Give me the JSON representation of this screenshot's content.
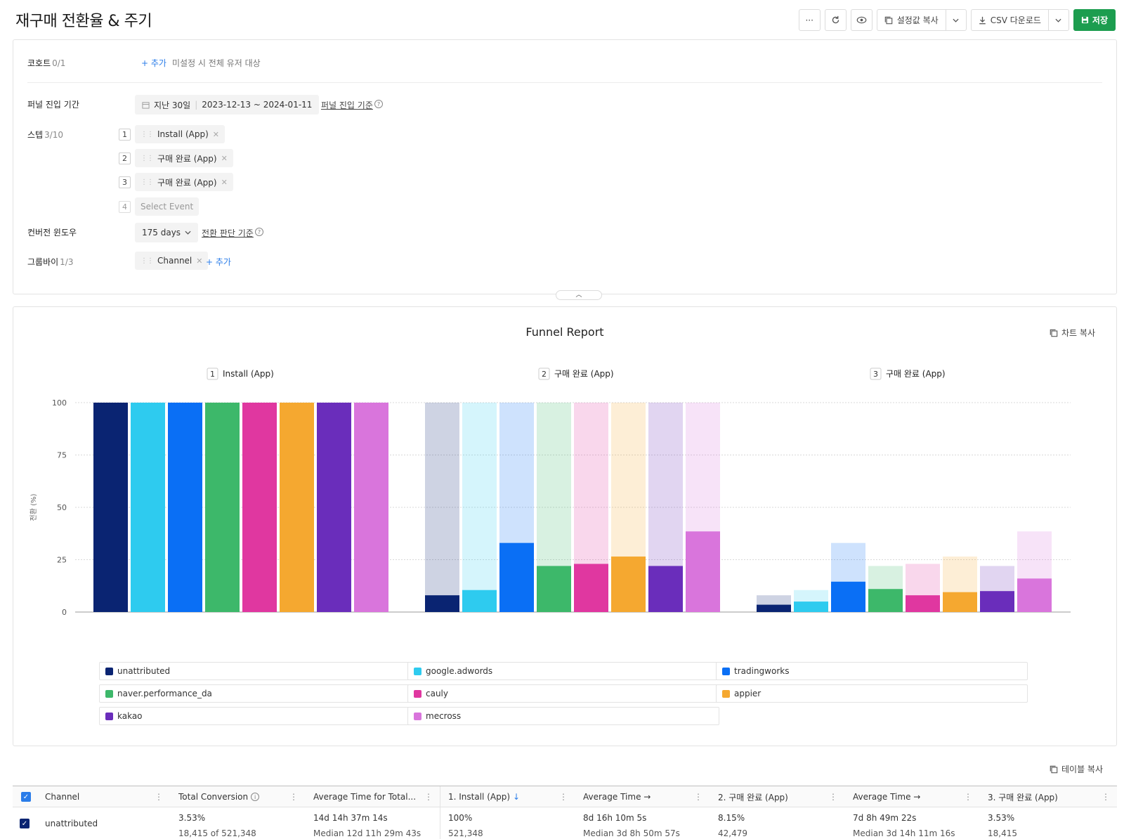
{
  "header": {
    "title": "재구매 전환율 & 주기",
    "more_icon": "···",
    "copy_settings_label": "설정값 복사",
    "csv_label": "CSV 다운로드",
    "save_label": "저장"
  },
  "settings": {
    "cohort": {
      "label": "코호트",
      "count": "0/1",
      "add": "+ 추가",
      "hint": "미설정 시 전체 유저 대상"
    },
    "period": {
      "label": "퍼널 진입 기간",
      "preset": "지난 30일",
      "range": "2023-12-13 ~ 2024-01-11",
      "link": "퍼널 진입 기준"
    },
    "steps": {
      "label": "스텝",
      "count": "3/10",
      "items": [
        {
          "num": "1",
          "name": "Install (App)"
        },
        {
          "num": "2",
          "name": "구매 완료 (App)"
        },
        {
          "num": "3",
          "name": "구매 완료 (App)"
        },
        {
          "num": "4",
          "name": "Select Event"
        }
      ]
    },
    "window": {
      "label": "컨버전 윈도우",
      "value": "175 days",
      "link": "전환 판단 기준"
    },
    "groupby": {
      "label": "그룹바이",
      "count": "1/3",
      "chip": "Channel",
      "add": "+ 추가"
    }
  },
  "chart": {
    "title": "Funnel Report",
    "copy_label": "차트 복사",
    "ylabel": "전환 (%)"
  },
  "chart_data": {
    "type": "bar",
    "title": "Funnel Report",
    "ylabel": "전환 (%)",
    "ylim": [
      0,
      100
    ],
    "yticks": [
      0,
      25,
      50,
      75,
      100
    ],
    "grid": true,
    "legend_position": "bottom",
    "categories": [
      "1|Install (App)",
      "2|구매 완료 (App)",
      "3|구매 완료 (App)"
    ],
    "step_labels": [
      {
        "num": "1",
        "name": "Install (App)"
      },
      {
        "num": "2",
        "name": "구매 완료 (App)"
      },
      {
        "num": "3",
        "name": "구매 완료 (App)"
      }
    ],
    "series": [
      {
        "name": "unattributed",
        "color": "#0a2472",
        "values": [
          100,
          8,
          3.5
        ],
        "prev": [
          null,
          100,
          8
        ]
      },
      {
        "name": "google.adwords",
        "color": "#2ecbef",
        "values": [
          100,
          10.5,
          5
        ],
        "prev": [
          null,
          100,
          10.5
        ]
      },
      {
        "name": "tradingworks",
        "color": "#0a6ff5",
        "values": [
          100,
          33,
          14.5
        ],
        "prev": [
          null,
          100,
          33
        ]
      },
      {
        "name": "naver.performance_da",
        "color": "#3db86a",
        "values": [
          100,
          22,
          11
        ],
        "prev": [
          null,
          100,
          22
        ]
      },
      {
        "name": "cauly",
        "color": "#e037a0",
        "values": [
          100,
          23,
          8
        ],
        "prev": [
          null,
          100,
          23
        ]
      },
      {
        "name": "appier",
        "color": "#f5a830",
        "values": [
          100,
          26.5,
          9.5
        ],
        "prev": [
          null,
          100,
          26.5
        ]
      },
      {
        "name": "kakao",
        "color": "#6a2dbb",
        "values": [
          100,
          22,
          10
        ],
        "prev": [
          null,
          100,
          22
        ]
      },
      {
        "name": "mecross",
        "color": "#d975dc",
        "values": [
          100,
          38.5,
          16
        ],
        "prev": [
          null,
          100,
          38.5
        ]
      }
    ]
  },
  "table": {
    "copy_label": "테이블 복사",
    "columns": [
      "Channel",
      "Total Conversion",
      "Average Time for Total...",
      "1. Install (App)",
      "Average Time →",
      "2. 구매 완료 (App)",
      "Average Time →",
      "3. 구매 완료 (App)"
    ],
    "rows": [
      {
        "channel": "unattributed",
        "total_pct": "3.53%",
        "total_count": "18,415 of 521,348",
        "avg_total": "14d 14h 37m 14s",
        "avg_total_median": "Median 12d 11h 29m 43s",
        "s1_pct": "100%",
        "s1_count": "521,348",
        "avg1": "8d 16h 10m 5s",
        "avg1_median": "Median 3d 8h 50m 57s",
        "s2_pct": "8.15%",
        "s2_count": "42,479",
        "avg2": "7d 8h 49m 22s",
        "avg2_median": "Median 3d 14h 11m 16s",
        "s3_pct": "3.53%",
        "s3_count": "18,415"
      }
    ]
  },
  "colors": {
    "accent": "#2b7de9",
    "save": "#1c9d4f",
    "checkbox": "#0a2472"
  }
}
